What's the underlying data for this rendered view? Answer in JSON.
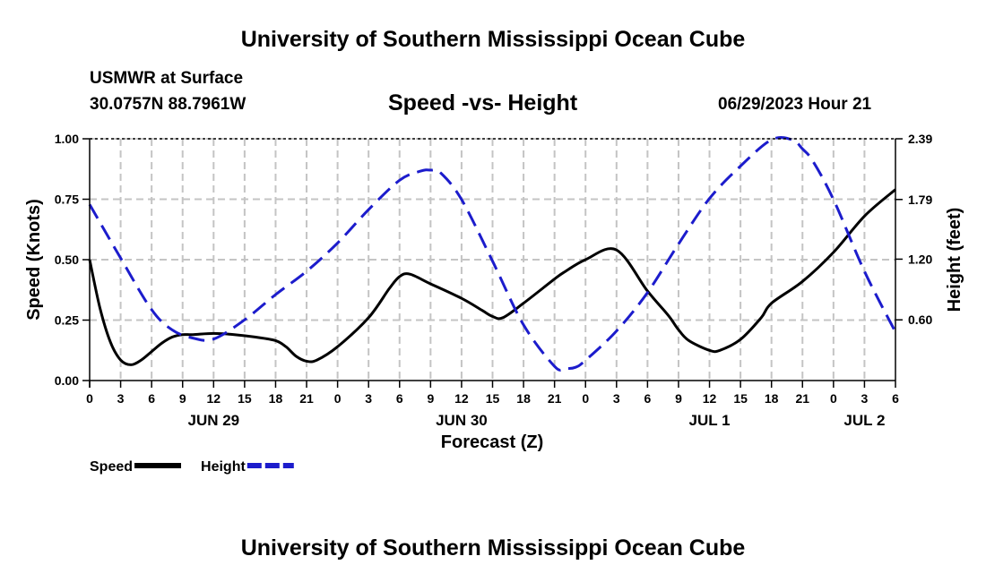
{
  "header": {
    "title_top": "University of Southern Mississippi Ocean Cube",
    "title_bottom": "University of Southern Mississippi Ocean Cube",
    "station": "USMWR at Surface",
    "coordinates": "30.0757N  88.7961W",
    "subtitle": "Speed -vs- Height",
    "datetime": "06/29/2023 Hour 21"
  },
  "chart_data": {
    "type": "line",
    "title": "Speed -vs- Height",
    "xlabel": "Forecast (Z)",
    "ylabel": "Speed (Knots)",
    "ylabel_right": "Height (feet)",
    "x_unit": "forecast hours from 06/29 00Z",
    "xlim": [
      0,
      78
    ],
    "ylim": [
      0,
      1.0
    ],
    "ylim_right": [
      0,
      2.39
    ],
    "yticks": [
      0.0,
      0.25,
      0.5,
      0.75,
      1.0
    ],
    "ytick_labels": [
      "0.00",
      "0.25",
      "0.50",
      "0.75",
      "1.00"
    ],
    "yticks_right": [
      0.6,
      1.2,
      1.79,
      2.39
    ],
    "ytick_labels_right": [
      "0.60",
      "1.20",
      "1.79",
      "2.39"
    ],
    "xticks": [
      0,
      3,
      6,
      9,
      12,
      15,
      18,
      21,
      24,
      27,
      30,
      33,
      36,
      39,
      42,
      45,
      48,
      51,
      54,
      57,
      60,
      63,
      66,
      69,
      72,
      75,
      78
    ],
    "xtick_labels": [
      "0",
      "3",
      "6",
      "9",
      "12",
      "15",
      "18",
      "21",
      "0",
      "3",
      "6",
      "9",
      "12",
      "15",
      "18",
      "21",
      "0",
      "3",
      "6",
      "9",
      "12",
      "15",
      "18",
      "21",
      "0",
      "3",
      "6"
    ],
    "day_labels": [
      {
        "x": 12,
        "label": "JUN 29"
      },
      {
        "x": 36,
        "label": "JUN 30"
      },
      {
        "x": 60,
        "label": "JUL 1"
      },
      {
        "x": 75,
        "label": "JUL 2"
      }
    ],
    "grid": true,
    "legend_position": "bottom-left",
    "series": [
      {
        "name": "Speed",
        "axis": "left",
        "color": "#000000",
        "dash": "solid",
        "x": [
          0,
          1,
          2,
          3,
          4,
          5,
          6,
          7,
          8,
          9,
          10,
          12,
          14,
          16,
          18,
          19,
          20,
          21,
          22,
          24,
          27,
          29,
          30,
          31,
          33,
          36,
          38,
          39,
          40,
          42,
          45,
          46,
          48,
          51,
          54,
          56,
          57,
          58,
          60,
          61,
          63,
          65,
          66,
          69,
          72,
          75,
          78
        ],
        "values": [
          0.5,
          0.3,
          0.16,
          0.085,
          0.065,
          0.085,
          0.12,
          0.155,
          0.18,
          0.19,
          0.19,
          0.195,
          0.19,
          0.18,
          0.165,
          0.14,
          0.1,
          0.08,
          0.085,
          0.14,
          0.26,
          0.38,
          0.43,
          0.44,
          0.4,
          0.34,
          0.29,
          0.265,
          0.26,
          0.32,
          0.42,
          0.45,
          0.5,
          0.54,
          0.37,
          0.27,
          0.21,
          0.165,
          0.125,
          0.125,
          0.17,
          0.26,
          0.32,
          0.41,
          0.53,
          0.68,
          0.79
        ]
      },
      {
        "name": "Height",
        "axis": "right",
        "color": "#1c1ccc",
        "dash": "dashed",
        "x": [
          0,
          3,
          6,
          8,
          10,
          12,
          15,
          18,
          21,
          24,
          27,
          30,
          32,
          33,
          34,
          36,
          39,
          42,
          45,
          46,
          47,
          48,
          51,
          54,
          57,
          60,
          63,
          66,
          68,
          69,
          70,
          72,
          75,
          78
        ],
        "values": [
          1.74,
          1.21,
          0.7,
          0.5,
          0.42,
          0.41,
          0.6,
          0.85,
          1.08,
          1.36,
          1.69,
          1.98,
          2.07,
          2.08,
          2.05,
          1.79,
          1.18,
          0.55,
          0.14,
          0.12,
          0.13,
          0.2,
          0.49,
          0.87,
          1.35,
          1.8,
          2.12,
          2.38,
          2.38,
          2.29,
          2.17,
          1.79,
          1.08,
          0.48
        ]
      }
    ]
  }
}
